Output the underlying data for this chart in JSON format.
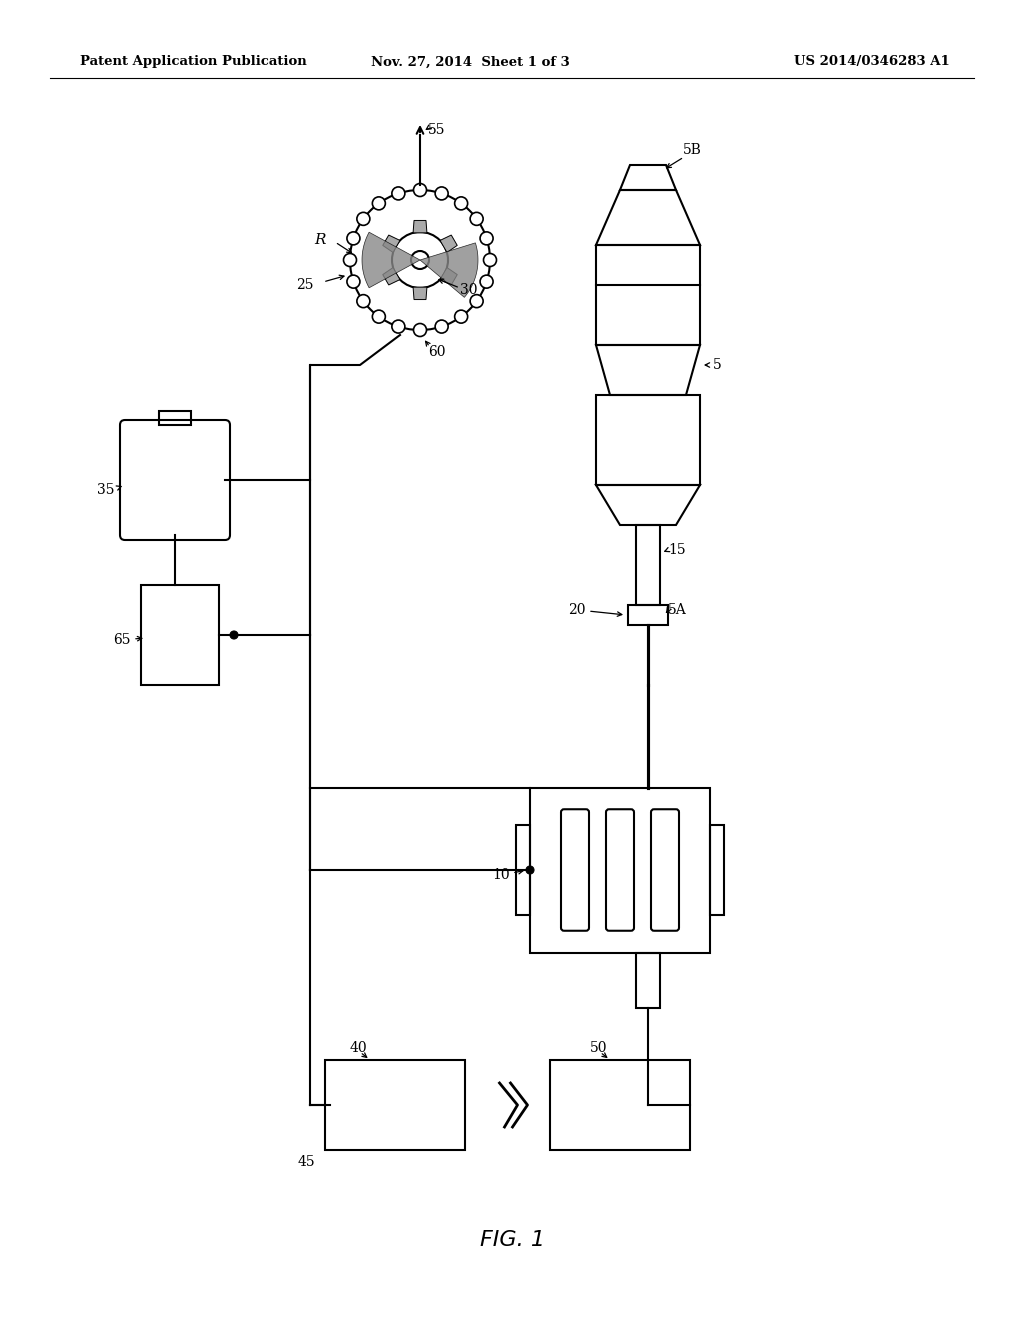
{
  "title_left": "Patent Application Publication",
  "title_mid": "Nov. 27, 2014  Sheet 1 of 3",
  "title_right": "US 2014/0346283 A1",
  "fig_label": "FIG. 1",
  "bg_color": "#ffffff",
  "line_color": "#000000",
  "lw": 1.5
}
